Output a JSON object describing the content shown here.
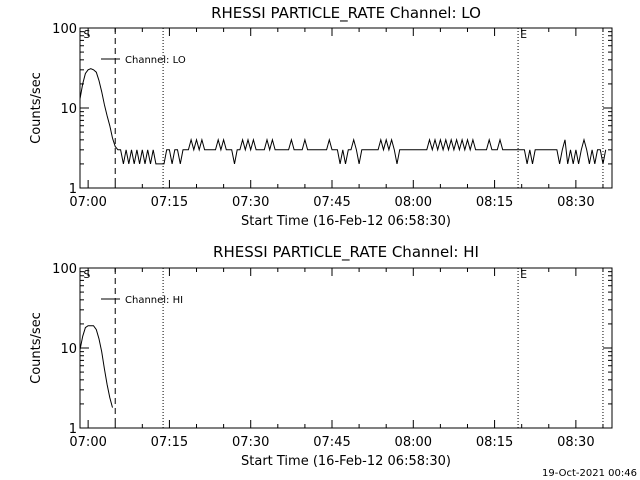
{
  "timestamp": "19-Oct-2021 00:46",
  "chart_data": [
    {
      "type": "line",
      "title": "RHESSI PARTICLE_RATE Channel: LO",
      "xlabel": "Start Time (16-Feb-12 06:58:30)",
      "ylabel": "Counts/sec",
      "yscale": "log",
      "ylim": [
        1,
        100
      ],
      "yticks": [
        "1",
        "10",
        "100"
      ],
      "xlim": [
        "06:58:30",
        "08:36:40"
      ],
      "xticks": [
        "07:00",
        "07:15",
        "07:30",
        "07:45",
        "08:00",
        "08:15",
        "08:30"
      ],
      "legend": "Channel: LO",
      "legend_position": "top-left",
      "markers": [
        {
          "label": "S",
          "time": "06:58:45"
        },
        {
          "label": "E",
          "time": "08:19:20"
        }
      ],
      "vlines": [
        {
          "time": "07:05:00",
          "style": "dashed"
        },
        {
          "time": "07:13:50",
          "style": "dotted"
        },
        {
          "time": "08:19:20",
          "style": "dotted"
        },
        {
          "time": "08:35:00",
          "style": "dotted"
        }
      ],
      "series": [
        {
          "name": "Channel: LO",
          "points": [
            [
              "06:58:30",
              13
            ],
            [
              "06:59:00",
              20
            ],
            [
              "06:59:30",
              27
            ],
            [
              "07:00:00",
              30
            ],
            [
              "07:00:30",
              31
            ],
            [
              "07:01:00",
              30
            ],
            [
              "07:01:30",
              28
            ],
            [
              "07:02:00",
              22
            ],
            [
              "07:02:30",
              16
            ],
            [
              "07:03:00",
              11
            ],
            [
              "07:03:30",
              8
            ],
            [
              "07:04:00",
              6
            ],
            [
              "07:04:30",
              4.2
            ],
            [
              "07:05:00",
              3.3
            ],
            [
              "07:05:30",
              3
            ],
            [
              "07:06:00",
              3
            ],
            [
              "07:06:30",
              2
            ],
            [
              "07:07:00",
              3
            ],
            [
              "07:07:30",
              2
            ],
            [
              "07:08:00",
              3
            ],
            [
              "07:08:30",
              2
            ],
            [
              "07:09:00",
              3
            ],
            [
              "07:09:30",
              2
            ],
            [
              "07:10:00",
              3
            ],
            [
              "07:10:30",
              2
            ],
            [
              "07:11:00",
              3
            ],
            [
              "07:11:30",
              2
            ],
            [
              "07:12:00",
              3
            ],
            [
              "07:12:30",
              2
            ],
            [
              "07:13:00",
              2
            ],
            [
              "07:14:00",
              2
            ],
            [
              "07:14:30",
              3
            ],
            [
              "07:15:00",
              3
            ],
            [
              "07:15:30",
              2
            ],
            [
              "07:16:00",
              3
            ],
            [
              "07:16:30",
              3
            ],
            [
              "07:17:00",
              2
            ],
            [
              "07:17:30",
              3
            ],
            [
              "07:18:30",
              3
            ],
            [
              "07:19:00",
              4
            ],
            [
              "07:19:30",
              3
            ],
            [
              "07:20:00",
              4
            ],
            [
              "07:20:30",
              3
            ],
            [
              "07:21:00",
              4
            ],
            [
              "07:21:30",
              3
            ],
            [
              "07:23:30",
              3
            ],
            [
              "07:24:00",
              4
            ],
            [
              "07:24:30",
              3
            ],
            [
              "07:25:00",
              4
            ],
            [
              "07:25:30",
              3
            ],
            [
              "07:26:30",
              3
            ],
            [
              "07:27:00",
              2
            ],
            [
              "07:27:30",
              3
            ],
            [
              "07:28:00",
              3
            ],
            [
              "07:28:30",
              4
            ],
            [
              "07:29:00",
              3
            ],
            [
              "07:29:30",
              4
            ],
            [
              "07:30:00",
              3
            ],
            [
              "07:30:30",
              4
            ],
            [
              "07:31:00",
              3
            ],
            [
              "07:32:30",
              3
            ],
            [
              "07:33:00",
              4
            ],
            [
              "07:33:30",
              3
            ],
            [
              "07:34:00",
              4
            ],
            [
              "07:34:30",
              3
            ],
            [
              "07:37:00",
              3
            ],
            [
              "07:37:30",
              4
            ],
            [
              "07:38:00",
              3
            ],
            [
              "07:39:30",
              3
            ],
            [
              "07:40:00",
              4
            ],
            [
              "07:40:30",
              3
            ],
            [
              "07:44:00",
              3
            ],
            [
              "07:44:30",
              4
            ],
            [
              "07:45:00",
              3
            ],
            [
              "07:46:00",
              3
            ],
            [
              "07:46:30",
              2
            ],
            [
              "07:47:00",
              3
            ],
            [
              "07:47:30",
              2
            ],
            [
              "07:48:00",
              3
            ],
            [
              "07:48:30",
              3
            ],
            [
              "07:49:00",
              4
            ],
            [
              "07:49:30",
              3
            ],
            [
              "07:50:00",
              2
            ],
            [
              "07:50:30",
              3
            ],
            [
              "07:53:30",
              3
            ],
            [
              "07:54:00",
              4
            ],
            [
              "07:54:30",
              3
            ],
            [
              "07:55:00",
              4
            ],
            [
              "07:55:30",
              3
            ],
            [
              "07:56:00",
              4
            ],
            [
              "07:56:30",
              3
            ],
            [
              "07:57:00",
              2
            ],
            [
              "07:57:30",
              3
            ],
            [
              "08:02:30",
              3
            ],
            [
              "08:03:00",
              4
            ],
            [
              "08:03:30",
              3
            ],
            [
              "08:04:00",
              4
            ],
            [
              "08:04:30",
              3
            ],
            [
              "08:05:00",
              4
            ],
            [
              "08:05:30",
              3
            ],
            [
              "08:06:00",
              4
            ],
            [
              "08:06:30",
              3
            ],
            [
              "08:07:00",
              4
            ],
            [
              "08:07:30",
              3
            ],
            [
              "08:08:00",
              4
            ],
            [
              "08:08:30",
              3
            ],
            [
              "08:09:00",
              4
            ],
            [
              "08:09:30",
              3
            ],
            [
              "08:10:00",
              4
            ],
            [
              "08:10:30",
              3
            ],
            [
              "08:11:00",
              4
            ],
            [
              "08:11:30",
              3
            ],
            [
              "08:13:30",
              3
            ],
            [
              "08:14:00",
              4
            ],
            [
              "08:14:30",
              3
            ],
            [
              "08:15:30",
              3
            ],
            [
              "08:16:00",
              4
            ],
            [
              "08:16:30",
              3
            ],
            [
              "08:20:30",
              3
            ],
            [
              "08:21:00",
              2
            ],
            [
              "08:21:30",
              3
            ],
            [
              "08:22:00",
              2
            ],
            [
              "08:22:30",
              3
            ],
            [
              "08:26:30",
              3
            ],
            [
              "08:27:00",
              2
            ],
            [
              "08:27:30",
              3
            ],
            [
              "08:28:00",
              4
            ],
            [
              "08:28:30",
              2
            ],
            [
              "08:29:00",
              3
            ],
            [
              "08:29:30",
              2
            ],
            [
              "08:30:00",
              3
            ],
            [
              "08:30:30",
              2
            ],
            [
              "08:31:00",
              3
            ],
            [
              "08:31:30",
              4
            ],
            [
              "08:32:00",
              3
            ],
            [
              "08:32:30",
              2
            ],
            [
              "08:33:00",
              3
            ],
            [
              "08:33:30",
              2
            ],
            [
              "08:34:00",
              3
            ],
            [
              "08:34:30",
              3
            ],
            [
              "08:35:00",
              2
            ],
            [
              "08:35:30",
              3
            ]
          ]
        }
      ]
    },
    {
      "type": "line",
      "title": "RHESSI PARTICLE_RATE Channel: HI",
      "xlabel": "Start Time (16-Feb-12 06:58:30)",
      "ylabel": "Counts/sec",
      "yscale": "log",
      "ylim": [
        1,
        100
      ],
      "yticks": [
        "1",
        "10",
        "100"
      ],
      "xlim": [
        "06:58:30",
        "08:36:40"
      ],
      "xticks": [
        "07:00",
        "07:15",
        "07:30",
        "07:45",
        "08:00",
        "08:15",
        "08:30"
      ],
      "legend": "Channel: HI",
      "legend_position": "top-left",
      "markers": [
        {
          "label": "S",
          "time": "06:58:45"
        },
        {
          "label": "E",
          "time": "08:19:20"
        }
      ],
      "vlines": [
        {
          "time": "07:05:00",
          "style": "dashed"
        },
        {
          "time": "07:13:50",
          "style": "dotted"
        },
        {
          "time": "08:19:20",
          "style": "dotted"
        },
        {
          "time": "08:35:00",
          "style": "dotted"
        }
      ],
      "series": [
        {
          "name": "Channel: HI",
          "points": [
            [
              "06:58:30",
              9.5
            ],
            [
              "06:59:00",
              14
            ],
            [
              "06:59:30",
              18
            ],
            [
              "07:00:00",
              19
            ],
            [
              "07:00:30",
              19
            ],
            [
              "07:01:00",
              19
            ],
            [
              "07:01:30",
              17
            ],
            [
              "07:02:00",
              13
            ],
            [
              "07:02:30",
              9
            ],
            [
              "07:03:00",
              5.5
            ],
            [
              "07:03:30",
              3.5
            ],
            [
              "07:04:00",
              2.4
            ],
            [
              "07:04:30",
              1.8
            ]
          ]
        }
      ]
    }
  ]
}
